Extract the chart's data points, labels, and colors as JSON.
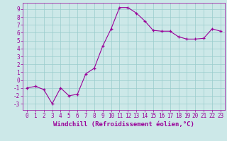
{
  "x": [
    0,
    1,
    2,
    3,
    4,
    5,
    6,
    7,
    8,
    9,
    10,
    11,
    12,
    13,
    14,
    15,
    16,
    17,
    18,
    19,
    20,
    21,
    22,
    23
  ],
  "y": [
    -1,
    -0.8,
    -1.2,
    -3,
    -1,
    -2,
    -1.8,
    0.8,
    1.5,
    4.3,
    6.5,
    9.2,
    9.2,
    8.5,
    7.5,
    6.3,
    6.2,
    6.2,
    5.5,
    5.2,
    5.2,
    5.3,
    6.5,
    6.2
  ],
  "line_color": "#990099",
  "marker": "+",
  "xlabel": "Windchill (Refroidissement éolien,°C)",
  "background_color": "#cce8e8",
  "grid_color": "#99cccc",
  "ylim": [
    -3.8,
    9.8
  ],
  "xlim": [
    -0.5,
    23.5
  ],
  "yticks": [
    -3,
    -2,
    -1,
    0,
    1,
    2,
    3,
    4,
    5,
    6,
    7,
    8,
    9
  ],
  "xticks": [
    0,
    1,
    2,
    3,
    4,
    5,
    6,
    7,
    8,
    9,
    10,
    11,
    12,
    13,
    14,
    15,
    16,
    17,
    18,
    19,
    20,
    21,
    22,
    23
  ],
  "tick_color": "#990099",
  "label_color": "#990099",
  "xlabel_fontsize": 6.5,
  "tick_fontsize": 5.5
}
